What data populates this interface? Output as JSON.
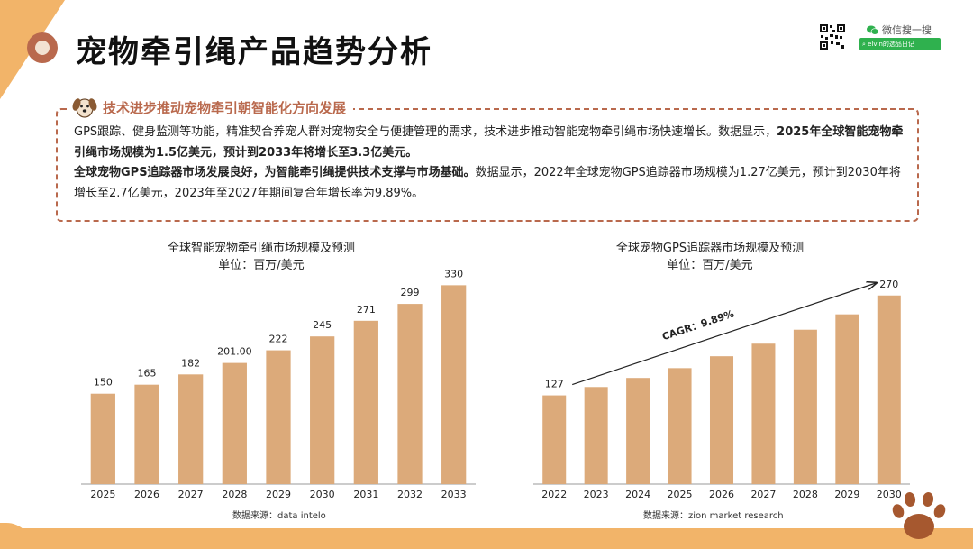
{
  "page": {
    "title": "宠物牵引绳产品趋势分析"
  },
  "wechat": {
    "label": "微信搜一搜",
    "search_text": "elvin的选品日记"
  },
  "info": {
    "heading": "技术进步推动宠物牵引朝智能化方向发展",
    "p1_a": "GPS跟踪、健身监测等功能，精准契合养宠人群对宠物安全与便捷管理的需求，技术进步推动智能宠物牵引绳市场快速增长。数据显示，",
    "p1_b": "2025年全球智能宠物牵引绳市场规模为1.5亿美元，预计到2033年将增长至3.3亿美元。",
    "p2_a": "全球宠物GPS追踪器市场发展良好，为智能牵引绳提供技术支撑与市场基础。",
    "p2_b": "数据显示，2022年全球宠物GPS追踪器市场规模为1.27亿美元，预计到2030年将增长至2.7亿美元，2023年至2027年期间复合年增长率为9.89%。"
  },
  "colors": {
    "bar": "#dcaa7a",
    "accent": "#b9694d",
    "band": "#f2b469",
    "axis": "#999999"
  },
  "chart_data": [
    {
      "type": "bar",
      "title": "全球智能宠物牵引绳市场规模及预测",
      "subtitle": "单位：百万/美元",
      "categories": [
        "2025",
        "2026",
        "2027",
        "2028",
        "2029",
        "2030",
        "2031",
        "2032",
        "2033"
      ],
      "values": [
        150,
        165,
        182,
        201,
        222,
        245,
        271,
        299,
        330
      ],
      "labels": [
        "150",
        "165",
        "182",
        "201.00",
        "222",
        "245",
        "271",
        "299",
        "330"
      ],
      "ylim": [
        0,
        350
      ],
      "source": "数据来源：data intelo"
    },
    {
      "type": "bar",
      "title": "全球宠物GPS追踪器市场规模及预测",
      "subtitle": "单位：百万/美元",
      "categories": [
        "2022",
        "2023",
        "2024",
        "2025",
        "2026",
        "2027",
        "2028",
        "2029",
        "2030"
      ],
      "values": [
        127,
        139,
        152,
        166,
        183,
        201,
        221,
        243,
        270
      ],
      "labels": [
        "127",
        "",
        "",
        "",
        "",
        "",
        "",
        "",
        "270"
      ],
      "ylim": [
        0,
        280
      ],
      "annotation": "CAGR：9.89%",
      "source": "数据来源：zion market research"
    }
  ]
}
